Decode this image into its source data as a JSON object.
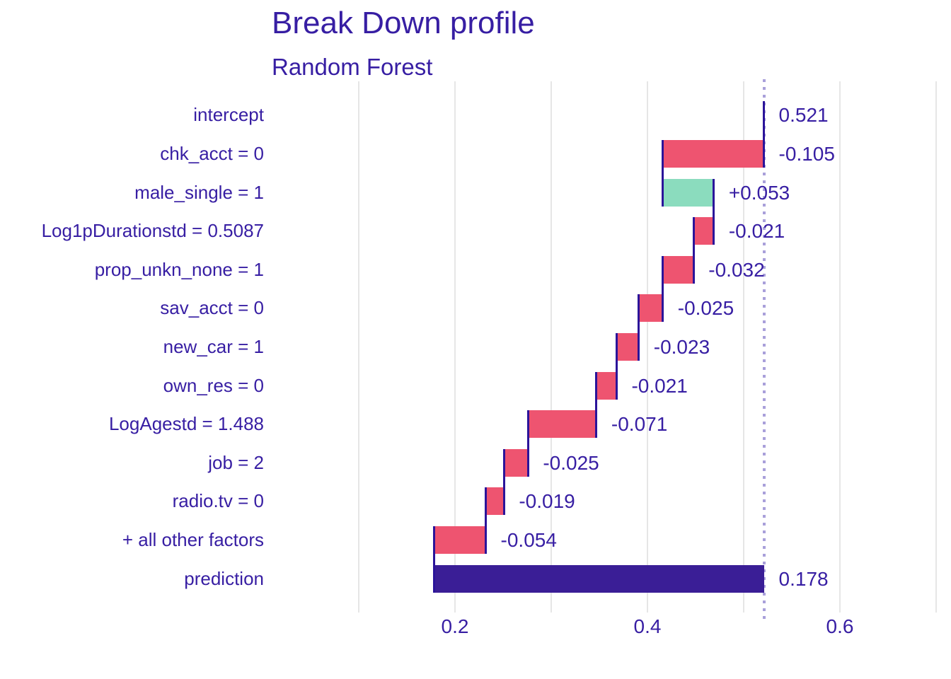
{
  "title": "Break Down profile",
  "subtitle": "Random Forest",
  "colors": {
    "text": "#371ea3",
    "negative_bar": "#ee5470",
    "positive_bar": "#8bdcbe",
    "summary_bar": "#3a1e96",
    "connector_line": "#2b149a",
    "gridline": "#e6e6e6",
    "dotted_line": "#a9a0da",
    "background": "#ffffff"
  },
  "chart_data": {
    "type": "bar",
    "subtype": "breakdown_waterfall",
    "orientation": "horizontal",
    "title": "Break Down profile",
    "subtitle": "Random Forest",
    "model": "Random Forest",
    "intercept": 0.521,
    "prediction": 0.178,
    "xlabel": "",
    "ylabel": "",
    "xlim": [
      0.07,
      0.715
    ],
    "grid": "vertical-only",
    "legend": "none",
    "x_ticks": [
      {
        "value": 0.2,
        "label": "0.2"
      },
      {
        "value": 0.4,
        "label": "0.4"
      },
      {
        "value": 0.6,
        "label": "0.6"
      }
    ],
    "gridline_values": [
      0.1,
      0.2,
      0.3,
      0.4,
      0.5,
      0.6,
      0.7
    ],
    "dotted_line_x": 0.521,
    "rows": [
      {
        "label": "intercept",
        "contribution": 0.521,
        "value_label": "0.521",
        "start": 0.521,
        "end": 0.521,
        "kind": "intercept"
      },
      {
        "label": "chk_acct = 0",
        "contribution": -0.105,
        "value_label": "-0.105",
        "start": 0.416,
        "end": 0.521,
        "kind": "negative"
      },
      {
        "label": "male_single = 1",
        "contribution": 0.053,
        "value_label": "+0.053",
        "start": 0.416,
        "end": 0.469,
        "kind": "positive"
      },
      {
        "label": "Log1pDurationstd = 0.5087",
        "contribution": -0.021,
        "value_label": "-0.021",
        "start": 0.448,
        "end": 0.469,
        "kind": "negative"
      },
      {
        "label": "prop_unkn_none = 1",
        "contribution": -0.032,
        "value_label": "-0.032",
        "start": 0.416,
        "end": 0.448,
        "kind": "negative"
      },
      {
        "label": "sav_acct = 0",
        "contribution": -0.025,
        "value_label": "-0.025",
        "start": 0.391,
        "end": 0.416,
        "kind": "negative"
      },
      {
        "label": "new_car = 1",
        "contribution": -0.023,
        "value_label": "-0.023",
        "start": 0.368,
        "end": 0.391,
        "kind": "negative"
      },
      {
        "label": "own_res = 0",
        "contribution": -0.021,
        "value_label": "-0.021",
        "start": 0.347,
        "end": 0.368,
        "kind": "negative"
      },
      {
        "label": "LogAgestd = 1.488",
        "contribution": -0.071,
        "value_label": "-0.071",
        "start": 0.276,
        "end": 0.347,
        "kind": "negative"
      },
      {
        "label": "job = 2",
        "contribution": -0.025,
        "value_label": "-0.025",
        "start": 0.251,
        "end": 0.276,
        "kind": "negative"
      },
      {
        "label": "radio.tv = 0",
        "contribution": -0.019,
        "value_label": "-0.019",
        "start": 0.232,
        "end": 0.251,
        "kind": "negative"
      },
      {
        "label": "+ all other factors",
        "contribution": -0.054,
        "value_label": "-0.054",
        "start": 0.178,
        "end": 0.232,
        "kind": "negative"
      },
      {
        "label": "prediction",
        "contribution": 0.178,
        "value_label": "0.178",
        "start": 0.178,
        "end": 0.521,
        "kind": "prediction"
      }
    ],
    "connectors": [
      {
        "x": 0.521,
        "from_row": 0,
        "to_row": 1
      },
      {
        "x": 0.416,
        "from_row": 1,
        "to_row": 2
      },
      {
        "x": 0.469,
        "from_row": 2,
        "to_row": 3
      },
      {
        "x": 0.448,
        "from_row": 3,
        "to_row": 4
      },
      {
        "x": 0.416,
        "from_row": 4,
        "to_row": 5
      },
      {
        "x": 0.391,
        "from_row": 5,
        "to_row": 6
      },
      {
        "x": 0.368,
        "from_row": 6,
        "to_row": 7
      },
      {
        "x": 0.347,
        "from_row": 7,
        "to_row": 8
      },
      {
        "x": 0.276,
        "from_row": 8,
        "to_row": 9
      },
      {
        "x": 0.251,
        "from_row": 9,
        "to_row": 10
      },
      {
        "x": 0.232,
        "from_row": 10,
        "to_row": 11
      },
      {
        "x": 0.178,
        "from_row": 11,
        "to_row": 12
      }
    ]
  }
}
